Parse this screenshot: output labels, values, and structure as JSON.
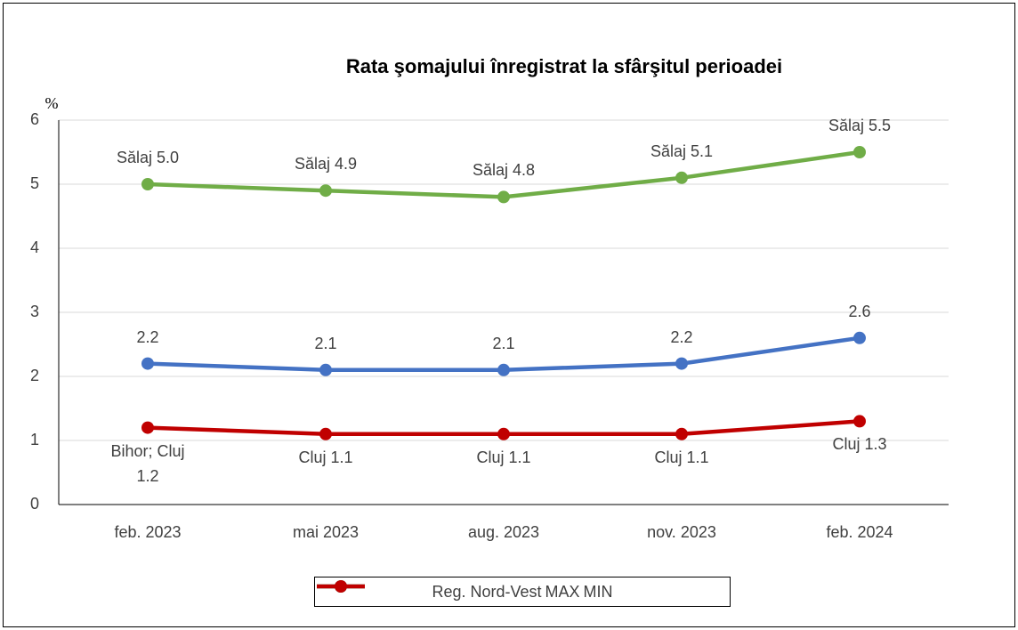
{
  "chart_data": {
    "type": "line",
    "title": "Rata şomajului înregistrat la sfârşitul perioadei",
    "y_label": "%",
    "categories": [
      "feb. 2023",
      "mai 2023",
      "aug. 2023",
      "nov. 2023",
      "feb. 2024"
    ],
    "series": [
      {
        "name": "Reg. Nord-Vest",
        "color": "#4472c4",
        "values": [
          2.2,
          2.1,
          2.1,
          2.2,
          2.6
        ],
        "label_side": "above"
      },
      {
        "name": "MAX",
        "color": "#70ad47",
        "values": [
          5.0,
          4.9,
          4.8,
          5.1,
          5.5
        ],
        "value_labels": [
          "Sălaj 5.0",
          "Sălaj 4.9",
          "Sălaj 4.8",
          "Sălaj 5.1",
          "Sălaj 5.5"
        ],
        "label_side": "above"
      },
      {
        "name": "MIN",
        "color": "#c00000",
        "values": [
          1.2,
          1.1,
          1.1,
          1.1,
          1.3
        ],
        "value_labels": [
          "Bihor; Cluj 1.2",
          "Cluj 1.1",
          "Cluj 1.1",
          "Cluj 1.1",
          "Cluj 1.3"
        ],
        "label_side": "below"
      }
    ],
    "ylim": [
      0,
      6
    ],
    "yticks": [
      0,
      1,
      2,
      3,
      4,
      5,
      6
    ],
    "grid": true,
    "legend": "bottom"
  }
}
